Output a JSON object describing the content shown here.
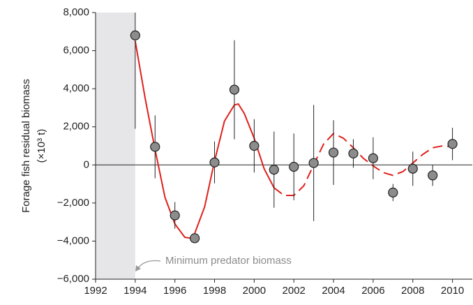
{
  "chart_data": {
    "type": "scatter",
    "y_label": [
      "Forage fish residual biomass",
      "(×10³ t)"
    ],
    "annotation": "Minimum predator biomass",
    "shade": [
      1992,
      1994
    ],
    "x": [
      1994,
      1995,
      1996,
      1997,
      1998,
      1999,
      2000,
      2001,
      2002,
      2003,
      2004,
      2005,
      2006,
      2007,
      2008,
      2009,
      2010
    ],
    "values": [
      6800,
      950,
      -2650,
      -3850,
      130,
      3950,
      1000,
      -250,
      -100,
      100,
      650,
      600,
      350,
      -1450,
      -200,
      -550,
      1100
    ],
    "errors": [
      4900,
      1650,
      700,
      150,
      1100,
      2600,
      1400,
      2000,
      1750,
      3050,
      1700,
      750,
      1100,
      450,
      900,
      550,
      850
    ],
    "color": "#8c8c8c",
    "fit_color": "#e0201b",
    "fit_solid": {
      "x": [
        1994,
        1994.5,
        1995,
        1995.5,
        1996,
        1996.5,
        1996.8,
        1997,
        1997.5,
        1998,
        1998.5,
        1999,
        1999.2,
        1999.5,
        2000,
        2000.5,
        2001
      ],
      "y": [
        6500,
        3500,
        800,
        -1700,
        -3100,
        -3800,
        -3850,
        -3600,
        -2200,
        200,
        2300,
        3150,
        3200,
        2700,
        1400,
        -200,
        -1200
      ]
    },
    "fit_dashed": {
      "x": [
        2001,
        2001.5,
        2002,
        2002.5,
        2003,
        2003.5,
        2004,
        2004.5,
        2005,
        2005.5,
        2006,
        2006.5,
        2007,
        2007.5,
        2008,
        2008.5,
        2009,
        2009.5,
        2010
      ],
      "y": [
        -1200,
        -1600,
        -1600,
        -1100,
        0,
        1100,
        1650,
        1400,
        900,
        350,
        -50,
        -400,
        -550,
        -350,
        100,
        550,
        900,
        1000,
        950
      ]
    },
    "xlim": [
      1992,
      2011
    ],
    "ylim": [
      -6000,
      8000
    ],
    "xticks": [
      1992,
      1994,
      1996,
      1998,
      2000,
      2002,
      2004,
      2006,
      2008,
      2010
    ],
    "yticks": [
      {
        "value": -6000,
        "label": "−6,000"
      },
      {
        "value": -4000,
        "label": "−4,000"
      },
      {
        "value": -2000,
        "label": "−2,000"
      },
      0,
      {
        "value": 2000,
        "label": "2,000"
      },
      {
        "value": 4000,
        "label": "4,000"
      },
      {
        "value": 6000,
        "label": "6,000"
      },
      {
        "value": 8000,
        "label": "8,000"
      }
    ]
  }
}
